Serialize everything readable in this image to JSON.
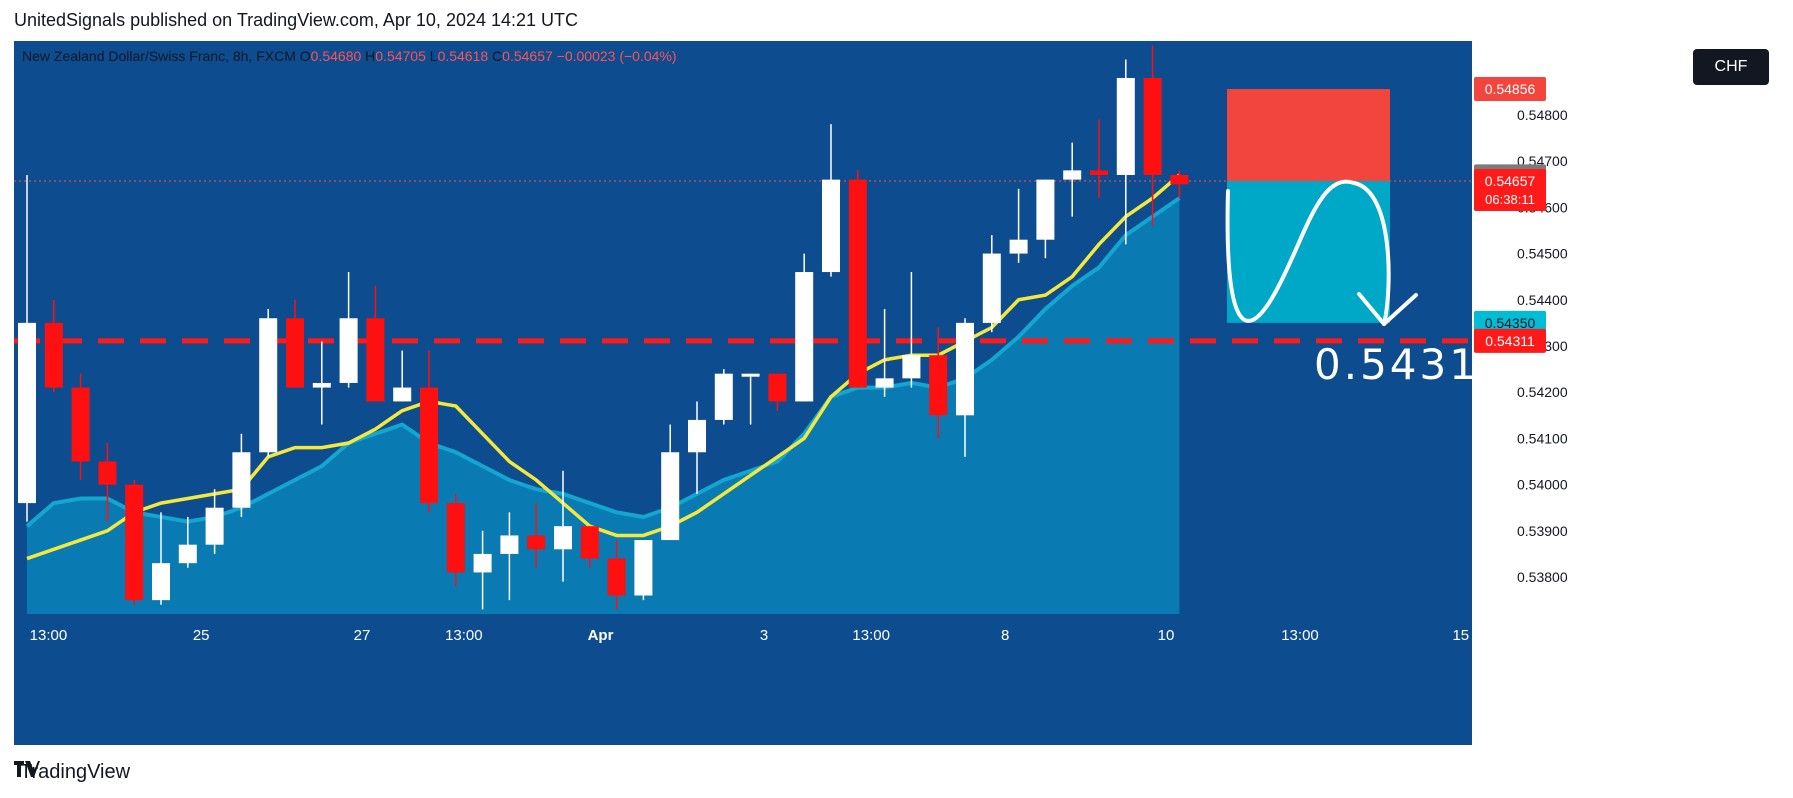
{
  "header": {
    "published_line": "UnitedSignals published on TradingView.com, Apr 10, 2024 14:21 UTC"
  },
  "legend": {
    "symbol": "New Zealand Dollar/Swiss Franc",
    "separator1": ", 8h, FXCM",
    "o_label": "O",
    "o_value": "0.54680",
    "h_label": "H",
    "h_value": "0.54705",
    "l_label": "L",
    "l_value": "0.54618",
    "c_label": "C",
    "c_value": "0.54657",
    "change": "−0.00023 (−0.04%)"
  },
  "currency_button": "CHF",
  "footer": {
    "brand": "TradingView",
    "mark": "17"
  },
  "colors": {
    "background": "#0d4c8f",
    "grid": "#1b5a9c",
    "up_candle": "#ffffff",
    "down_candle": "#ff1010",
    "ema_fast": "#f5e83c",
    "area_fill": "#0a82b8",
    "area_line": "#12a6d0",
    "target_zone": "#00a8c8",
    "stop_zone": "#f2453d",
    "dashed_level": "#ff1a1a",
    "axis_bg": "#ffffff",
    "axis_text": "#131722"
  },
  "chart_data": {
    "type": "candlestick",
    "ylim": [
      0.5372,
      0.5496
    ],
    "y_ticks": [
      "0.54800",
      "0.54700",
      "0.54600",
      "0.54500",
      "0.54400",
      "0.54300",
      "0.54200",
      "0.54100",
      "0.54000",
      "0.53900",
      "0.53800"
    ],
    "y_tick_values": [
      0.548,
      0.547,
      0.546,
      0.545,
      0.544,
      0.543,
      0.542,
      0.541,
      0.54,
      0.539,
      0.538
    ],
    "x_ticks": [
      "13:00",
      "25",
      "27",
      "13:00",
      "Apr",
      "3",
      "13:00",
      "8",
      "10",
      "13:00",
      "15"
    ],
    "x_tick_index": [
      0.8,
      6.5,
      12.5,
      16.3,
      21.4,
      27.5,
      31.5,
      36.5,
      42.5,
      47.5,
      53.5
    ],
    "candles": [
      {
        "o": 0.5396,
        "h": 0.5467,
        "l": 0.5392,
        "c": 0.5435
      },
      {
        "o": 0.5435,
        "h": 0.544,
        "l": 0.542,
        "c": 0.5421
      },
      {
        "o": 0.5421,
        "h": 0.5424,
        "l": 0.5401,
        "c": 0.5405
      },
      {
        "o": 0.5405,
        "h": 0.5409,
        "l": 0.5392,
        "c": 0.54
      },
      {
        "o": 0.54,
        "h": 0.5401,
        "l": 0.5374,
        "c": 0.5375
      },
      {
        "o": 0.5375,
        "h": 0.5394,
        "l": 0.5374,
        "c": 0.5383
      },
      {
        "o": 0.5383,
        "h": 0.5393,
        "l": 0.5382,
        "c": 0.5387
      },
      {
        "o": 0.5387,
        "h": 0.5399,
        "l": 0.5385,
        "c": 0.5395
      },
      {
        "o": 0.5395,
        "h": 0.5411,
        "l": 0.5393,
        "c": 0.5407
      },
      {
        "o": 0.5407,
        "h": 0.5438,
        "l": 0.5406,
        "c": 0.5436
      },
      {
        "o": 0.5436,
        "h": 0.544,
        "l": 0.5421,
        "c": 0.5421
      },
      {
        "o": 0.5421,
        "h": 0.5431,
        "l": 0.5413,
        "c": 0.5422
      },
      {
        "o": 0.5422,
        "h": 0.5446,
        "l": 0.5421,
        "c": 0.5436
      },
      {
        "o": 0.5436,
        "h": 0.5443,
        "l": 0.5418,
        "c": 0.5418
      },
      {
        "o": 0.5418,
        "h": 0.5429,
        "l": 0.5418,
        "c": 0.5421
      },
      {
        "o": 0.5421,
        "h": 0.5429,
        "l": 0.5394,
        "c": 0.5396
      },
      {
        "o": 0.5396,
        "h": 0.5398,
        "l": 0.5378,
        "c": 0.5381
      },
      {
        "o": 0.5381,
        "h": 0.539,
        "l": 0.5373,
        "c": 0.5385
      },
      {
        "o": 0.5385,
        "h": 0.5394,
        "l": 0.5375,
        "c": 0.5389
      },
      {
        "o": 0.5389,
        "h": 0.5396,
        "l": 0.5382,
        "c": 0.5386
      },
      {
        "o": 0.5386,
        "h": 0.5403,
        "l": 0.5379,
        "c": 0.5391
      },
      {
        "o": 0.5391,
        "h": 0.5391,
        "l": 0.5382,
        "c": 0.5384
      },
      {
        "o": 0.5384,
        "h": 0.5388,
        "l": 0.5373,
        "c": 0.5376
      },
      {
        "o": 0.5376,
        "h": 0.5388,
        "l": 0.5375,
        "c": 0.5388
      },
      {
        "o": 0.5388,
        "h": 0.5413,
        "l": 0.5388,
        "c": 0.5407
      },
      {
        "o": 0.5407,
        "h": 0.5418,
        "l": 0.5398,
        "c": 0.5414
      },
      {
        "o": 0.5414,
        "h": 0.5425,
        "l": 0.5413,
        "c": 0.5424
      },
      {
        "o": 0.5424,
        "h": 0.5424,
        "l": 0.5413,
        "c": 0.5424
      },
      {
        "o": 0.5424,
        "h": 0.5424,
        "l": 0.5416,
        "c": 0.5418
      },
      {
        "o": 0.5418,
        "h": 0.545,
        "l": 0.5418,
        "c": 0.5446
      },
      {
        "o": 0.5446,
        "h": 0.5478,
        "l": 0.5445,
        "c": 0.5466
      },
      {
        "o": 0.5466,
        "h": 0.5468,
        "l": 0.5421,
        "c": 0.5421
      },
      {
        "o": 0.5421,
        "h": 0.5438,
        "l": 0.5419,
        "c": 0.5423
      },
      {
        "o": 0.5423,
        "h": 0.5446,
        "l": 0.5421,
        "c": 0.5428
      },
      {
        "o": 0.5428,
        "h": 0.5434,
        "l": 0.541,
        "c": 0.5415
      },
      {
        "o": 0.5415,
        "h": 0.5436,
        "l": 0.5406,
        "c": 0.5435
      },
      {
        "o": 0.5435,
        "h": 0.5454,
        "l": 0.5433,
        "c": 0.545
      },
      {
        "o": 0.545,
        "h": 0.5464,
        "l": 0.5448,
        "c": 0.5453
      },
      {
        "o": 0.5453,
        "h": 0.5466,
        "l": 0.5449,
        "c": 0.5466
      },
      {
        "o": 0.5466,
        "h": 0.5474,
        "l": 0.5458,
        "c": 0.5468
      },
      {
        "o": 0.5468,
        "h": 0.5479,
        "l": 0.5462,
        "c": 0.5467
      },
      {
        "o": 0.5467,
        "h": 0.5492,
        "l": 0.5452,
        "c": 0.5488
      },
      {
        "o": 0.5488,
        "h": 0.5495,
        "l": 0.5456,
        "c": 0.5467
      },
      {
        "o": 0.5467,
        "h": 0.5468,
        "l": 0.5462,
        "c": 0.5465
      }
    ],
    "ema_fast": [
      0.5384,
      0.5386,
      0.5388,
      0.539,
      0.5394,
      0.5396,
      0.5397,
      0.5398,
      0.5399,
      0.5406,
      0.5408,
      0.5408,
      0.5409,
      0.5412,
      0.5416,
      0.5418,
      0.5417,
      0.5411,
      0.5405,
      0.5401,
      0.5396,
      0.5391,
      0.5389,
      0.5389,
      0.5391,
      0.5394,
      0.5398,
      0.5402,
      0.5406,
      0.541,
      0.5419,
      0.5424,
      0.5427,
      0.5428,
      0.5428,
      0.5431,
      0.5434,
      0.544,
      0.5441,
      0.5445,
      0.5452,
      0.5458,
      0.5462,
      0.5467
    ],
    "area_series": [
      0.5391,
      0.5396,
      0.5397,
      0.5397,
      0.5394,
      0.5393,
      0.5392,
      0.5393,
      0.5395,
      0.5398,
      0.5401,
      0.5404,
      0.5409,
      0.5411,
      0.5413,
      0.5409,
      0.5407,
      0.5404,
      0.5401,
      0.5399,
      0.5398,
      0.5396,
      0.5394,
      0.5393,
      0.5395,
      0.5398,
      0.5401,
      0.5403,
      0.5405,
      0.5411,
      0.5419,
      0.5421,
      0.5421,
      0.5422,
      0.5421,
      0.5423,
      0.5427,
      0.5432,
      0.5438,
      0.5443,
      0.5447,
      0.5454,
      0.5458,
      0.5462
    ],
    "current_line": 0.54657,
    "dashed_level": 0.54311,
    "target_box": {
      "top": 0.54657,
      "bottom": 0.5435
    },
    "stop_box": {
      "top": 0.54856,
      "bottom": 0.54657
    },
    "target_annotation": "0.5431",
    "price_labels": [
      {
        "value": 0.54856,
        "text": "0.54856",
        "bg": "#f2453d",
        "fg": "#ffffff"
      },
      {
        "value": 0.548,
        "text": "0.54800",
        "bg": "",
        "fg": "#131722"
      },
      {
        "value": 0.54667,
        "text": "0.54667",
        "bg": "#7b7b7b",
        "fg": "#ffffff"
      },
      {
        "value": 0.54657,
        "text": "0.54657",
        "bg": "#ff1a1a",
        "fg": "#ffffff",
        "sub": "06:38:11"
      },
      {
        "value": 0.5435,
        "text": "0.54350",
        "bg": "#00bcd4",
        "fg": "#131722"
      },
      {
        "value": 0.54311,
        "text": "0.54311",
        "bg": "#ff1a1a",
        "fg": "#ffffff"
      }
    ]
  }
}
